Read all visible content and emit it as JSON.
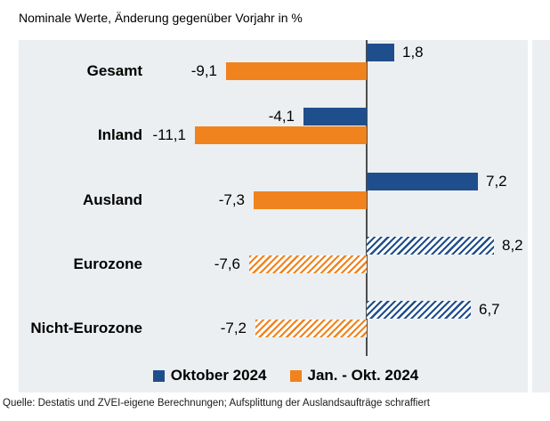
{
  "chart_data": {
    "type": "bar",
    "orientation": "horizontal",
    "title": "Nominale Werte, Änderung gegenüber Vorjahr in %",
    "categories": [
      "Gesamt",
      "Inland",
      "Ausland",
      "Eurozone",
      "Nicht-Eurozone"
    ],
    "series": [
      {
        "name": "Oktober 2024",
        "color": "#1F4E8C",
        "values": [
          1.8,
          -4.1,
          7.2,
          8.2,
          6.7
        ],
        "labels": [
          "1,8",
          "-4,1",
          "7,2",
          "8,2",
          "6,7"
        ],
        "hatched": [
          false,
          false,
          false,
          true,
          true
        ]
      },
      {
        "name": "Jan. - Okt. 2024",
        "color": "#F0831E",
        "values": [
          -9.1,
          -11.1,
          -7.3,
          -7.6,
          -7.2
        ],
        "labels": [
          "-9,1",
          "-11,1",
          "-7,3",
          "-7,6",
          "-7,2"
        ],
        "hatched": [
          false,
          false,
          false,
          true,
          true
        ]
      }
    ],
    "hatched_categories": [
      "Eurozone",
      "Nicht-Eurozone"
    ],
    "legend_position": "bottom",
    "grid": false,
    "zero_axis_line": true,
    "xlim": [
      -22.5,
      10.4
    ]
  },
  "colors": {
    "panel_background": "#ECEFF1",
    "axis_line": "#4D4D4D",
    "blue": "#1F4E8C",
    "orange": "#F0831E"
  },
  "footer": {
    "source_line": "Quelle: Destatis und ZVEI-eigene Berechnungen; Aufsplittung der Auslandsaufträge schraffiert"
  }
}
